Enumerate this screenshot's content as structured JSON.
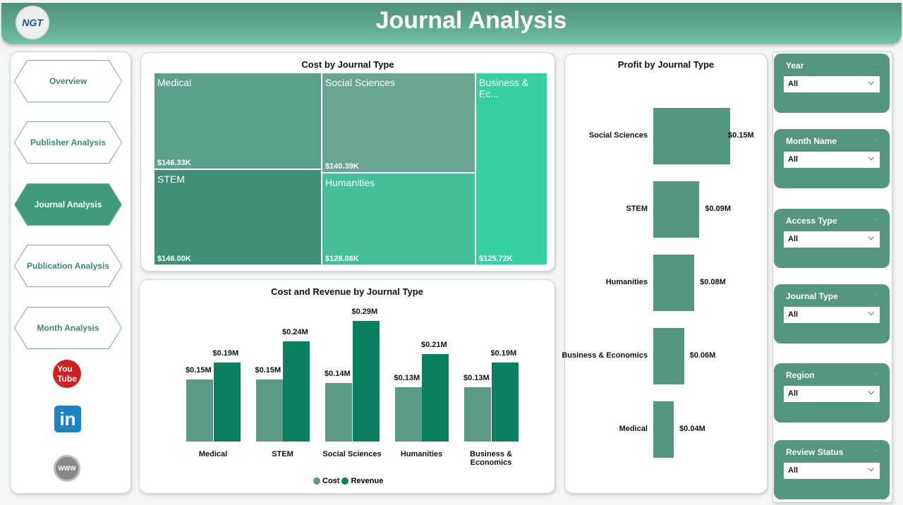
{
  "header": {
    "title": "Journal Analysis",
    "logo": "NGT"
  },
  "nav": [
    {
      "label": "Overview"
    },
    {
      "label": "Publisher Analysis"
    },
    {
      "label": "Journal Analysis",
      "active": true
    },
    {
      "label": "Publication Analysis"
    },
    {
      "label": "Month Analysis"
    }
  ],
  "social": [
    "youtube-icon",
    "linkedin-icon",
    "www-icon"
  ],
  "colors": {
    "cost": "#5a9a86",
    "revenue": "#0b8060",
    "accent": "#55967f"
  },
  "treemap": {
    "title": "Cost by Journal Type",
    "tiles": [
      {
        "name": "Medical",
        "value": "$146.33K",
        "color": "#5aa08a"
      },
      {
        "name": "STEM",
        "value": "$146.00K",
        "color": "#3e8f75"
      },
      {
        "name": "Social Sciences",
        "value": "$140.39K",
        "color": "#6aa592"
      },
      {
        "name": "Humanities",
        "value": "$128.08K",
        "color": "#45bf98"
      },
      {
        "name": "Business & Ec...",
        "value": "$125.72K",
        "color": "#36cf9f"
      }
    ]
  },
  "chart_data": [
    {
      "type": "bar",
      "title": "Cost and Revenue by Journal Type",
      "categories": [
        "Medical",
        "STEM",
        "Social Sciences",
        "Humanities",
        "Business & Economics"
      ],
      "series": [
        {
          "name": "Cost",
          "values": [
            0.15,
            0.15,
            0.14,
            0.13,
            0.13
          ],
          "labels": [
            "$0.15M",
            "$0.15M",
            "$0.14M",
            "$0.13M",
            "$0.13M"
          ]
        },
        {
          "name": "Revenue",
          "values": [
            0.19,
            0.24,
            0.29,
            0.21,
            0.19
          ],
          "labels": [
            "$0.19M",
            "$0.24M",
            "$0.29M",
            "$0.21M",
            "$0.19M"
          ]
        }
      ],
      "legend": "bottom"
    },
    {
      "type": "bar",
      "orientation": "horizontal",
      "title": "Profit by Journal Type",
      "categories": [
        "Social Sciences",
        "STEM",
        "Humanities",
        "Business & Economics",
        "Medical"
      ],
      "values": [
        0.15,
        0.09,
        0.08,
        0.06,
        0.04
      ],
      "labels": [
        "$0.15M",
        "$0.09M",
        "$0.08M",
        "$0.06M",
        "$0.04M"
      ]
    }
  ],
  "slicers": [
    {
      "label": "Year",
      "value": "All"
    },
    {
      "label": "Month Name",
      "value": "All"
    },
    {
      "label": "Access Type",
      "value": "All"
    },
    {
      "label": "Journal Type",
      "value": "All"
    },
    {
      "label": "Region",
      "value": "All"
    },
    {
      "label": "Review Status",
      "value": "All"
    }
  ]
}
